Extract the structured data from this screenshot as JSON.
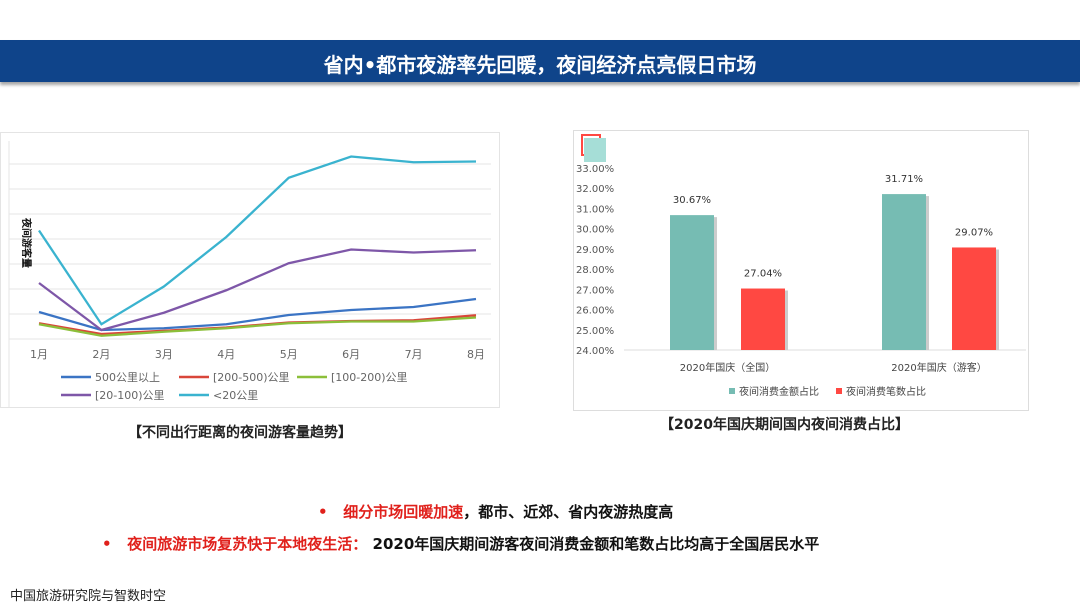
{
  "title": "省内•都市夜游率先回暖，夜间经济点亮假日市场",
  "chart_data": [
    {
      "type": "line",
      "ylabel": "夜间游客量",
      "categories": [
        "1月",
        "2月",
        "3月",
        "4月",
        "5月",
        "6月",
        "7月",
        "8月"
      ],
      "ylim": [
        0,
        8
      ],
      "grid": true,
      "legend": "bottom",
      "series": [
        {
          "name": "500公里以上",
          "color": "#3b74c4",
          "values": [
            1.08,
            0.36,
            0.43,
            0.59,
            0.96,
            1.16,
            1.28,
            1.6
          ]
        },
        {
          "name": "[200-500)公里",
          "color": "#d9463a",
          "values": [
            0.63,
            0.2,
            0.33,
            0.46,
            0.66,
            0.72,
            0.75,
            0.95
          ]
        },
        {
          "name": "[100-200)公里",
          "color": "#8cbf3a",
          "values": [
            0.59,
            0.13,
            0.29,
            0.43,
            0.63,
            0.7,
            0.7,
            0.86
          ]
        },
        {
          "name": "[20-100)公里",
          "color": "#7e57a8",
          "values": [
            2.24,
            0.36,
            1.05,
            1.95,
            3.03,
            3.58,
            3.46,
            3.55
          ]
        },
        {
          "name": "<20公里",
          "color": "#3ab3cf",
          "values": [
            4.34,
            0.59,
            2.1,
            4.08,
            6.45,
            7.3,
            7.07,
            7.1
          ]
        }
      ],
      "caption": "【不同出行距离的夜间游客量趋势】"
    },
    {
      "type": "bar",
      "categories": [
        "2020年国庆（全国）",
        "2020年国庆（游客）"
      ],
      "ylim": [
        24,
        33
      ],
      "yticks": [
        "33.00%",
        "32.00%",
        "31.00%",
        "30.00%",
        "29.00%",
        "28.00%",
        "27.00%",
        "26.00%",
        "25.00%",
        "24.00%"
      ],
      "legend": "bottom",
      "series": [
        {
          "name": "夜间消费金额占比",
          "color": "#76bcb3",
          "values": [
            30.67,
            31.71
          ],
          "labels": [
            "30.67%",
            "31.71%"
          ]
        },
        {
          "name": "夜间消费笔数占比",
          "color": "#ff4842",
          "values": [
            27.04,
            29.07
          ],
          "labels": [
            "27.04%",
            "29.07%"
          ]
        }
      ],
      "caption": "【2020年国庆期间国内夜间消费占比】"
    }
  ],
  "bullets": [
    {
      "red": "细分市场回暖加速",
      "black": "，都市、近郊、省内夜游热度高"
    },
    {
      "red": "夜间旅游市场复苏快于本地夜生活：",
      "black": " 2020年国庆期间游客夜间消费金额和笔数占比均高于全国居民水平"
    }
  ],
  "footer": "中国旅游研究院与智数时空"
}
